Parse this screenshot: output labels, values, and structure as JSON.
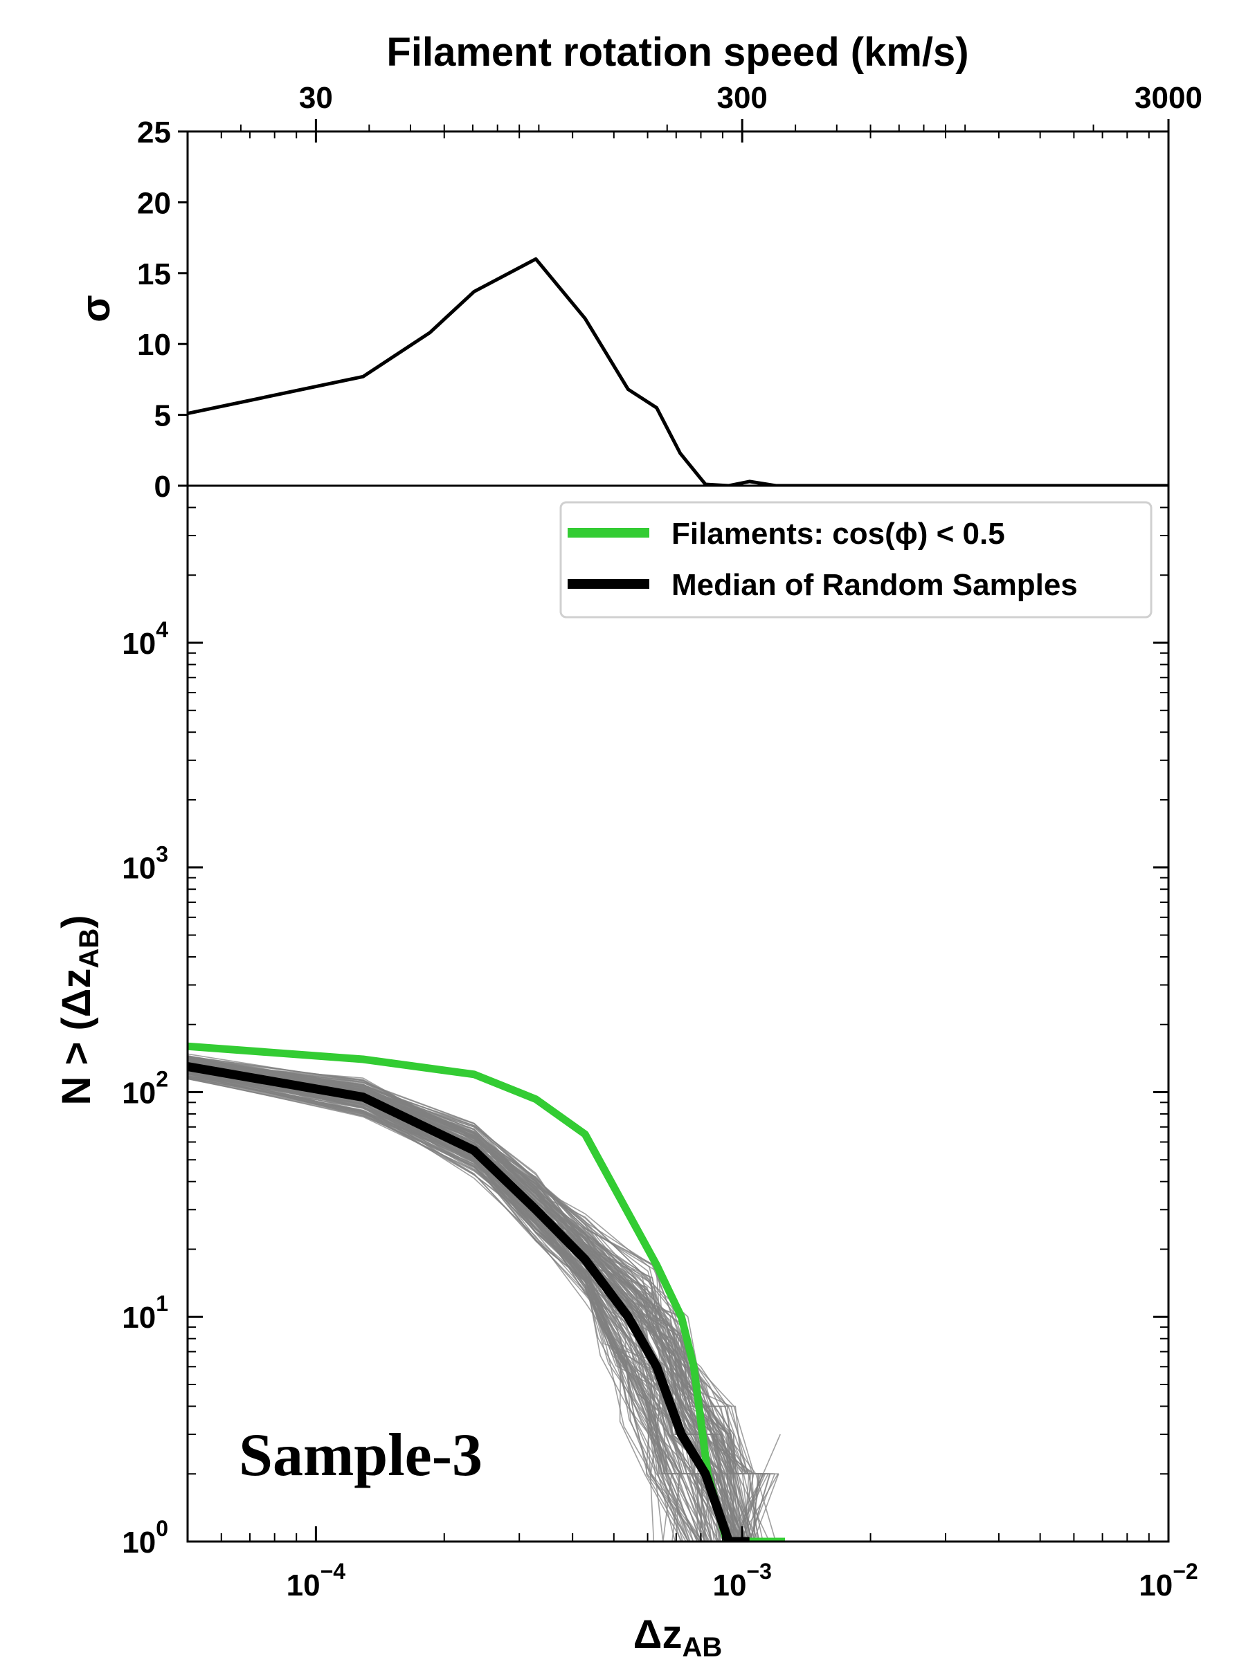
{
  "chart_data": [
    {
      "id": "top-panel",
      "type": "line",
      "xscale": "log",
      "xlim": [
        5e-05,
        0.01
      ],
      "ylim": [
        0,
        25
      ],
      "ylabel": "σ",
      "y_ticks": [
        0,
        5,
        10,
        15,
        20,
        25
      ],
      "y_tick_labels": [
        "0",
        "5",
        "10",
        "15",
        "20",
        "25"
      ],
      "top_axis": {
        "label": "Filament rotation speed (km/s)",
        "ticks": [
          30,
          300,
          3000
        ],
        "tick_labels": [
          "30",
          "300",
          "3000"
        ],
        "xlim": [
          15,
          3000
        ]
      },
      "series": [
        {
          "name": "sigma",
          "color": "#000000",
          "x": [
            5e-05,
            0.000129,
            0.000185,
            0.000235,
            0.000328,
            0.000428,
            0.00054,
            0.00063,
            0.000715,
            0.00082,
            0.00093,
            0.00104,
            0.0012,
            0.01
          ],
          "y": [
            5.1,
            7.7,
            10.8,
            13.7,
            16.0,
            11.8,
            6.8,
            5.5,
            2.3,
            0.1,
            0.0,
            0.3,
            0.0,
            0.0
          ]
        }
      ]
    },
    {
      "id": "bottom-panel",
      "type": "line",
      "xscale": "log",
      "yscale": "log",
      "xlim": [
        5e-05,
        0.01
      ],
      "ylim": [
        1,
        50000
      ],
      "xlabel_main": "Δz",
      "xlabel_sub": "AB",
      "ylabel_main": "N > (Δz",
      "ylabel_sub": "AB",
      "ylabel_close": ")",
      "x_ticks": [
        0.0001,
        0.001,
        0.01
      ],
      "x_tick_base": "10",
      "x_tick_exponents": [
        "−4",
        "−3",
        "−2"
      ],
      "y_ticks": [
        1,
        10,
        100,
        1000,
        10000
      ],
      "y_tick_base": "10",
      "y_tick_exponents": [
        "0",
        "1",
        "2",
        "3",
        "4"
      ],
      "annotation": "Sample-3",
      "legend": {
        "position": "upper right",
        "entries": [
          {
            "label": "Filaments: cos(ϕ) < 0.5",
            "color": "#33cc33"
          },
          {
            "label": "Median of Random Samples",
            "color": "#000000"
          }
        ]
      },
      "series": [
        {
          "name": "Filaments: cos(ϕ) < 0.5",
          "color": "#33cc33",
          "x": [
            5e-05,
            0.000129,
            0.000235,
            0.000328,
            0.000428,
            0.00063,
            0.00072,
            0.00077,
            0.00083,
            0.00092,
            0.00104,
            0.00126
          ],
          "y": [
            160,
            140,
            120,
            93,
            65,
            17,
            10,
            6,
            2,
            1,
            1,
            1
          ]
        },
        {
          "name": "Median of Random Samples",
          "color": "#000000",
          "x": [
            5e-05,
            0.000129,
            0.000235,
            0.000328,
            0.000428,
            0.00054,
            0.00063,
            0.00072,
            0.00082,
            0.00093,
            0.00104
          ],
          "y": [
            130,
            95,
            55,
            30,
            18,
            10,
            6,
            3,
            2,
            1,
            1
          ]
        },
        {
          "name": "Random Samples",
          "color": "#808080",
          "count": 150,
          "description": "individual random sample curves scattered around the median"
        }
      ]
    }
  ]
}
